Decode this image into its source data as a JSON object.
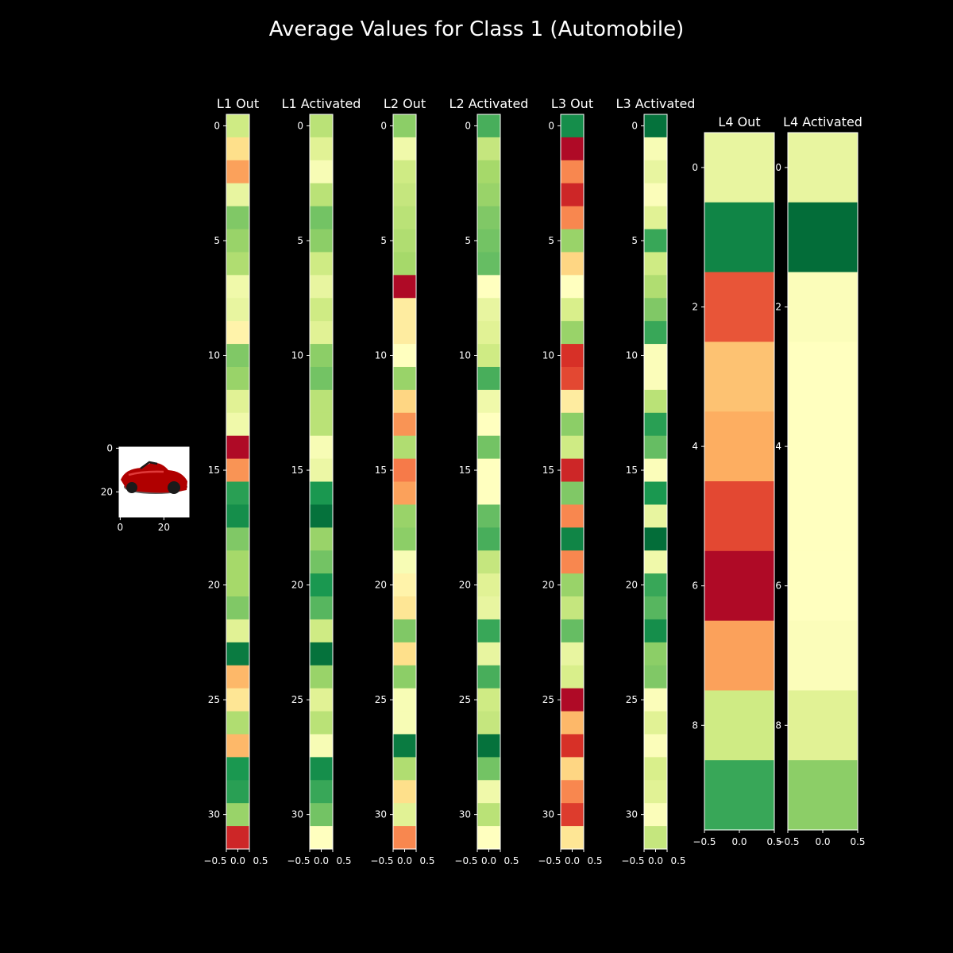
{
  "figure": {
    "title": "Average Values for Class 1 (Automobile)",
    "background": "#000000",
    "foreground": "#ffffff",
    "colormap": "RdYlGn"
  },
  "chart_data": [
    {
      "type": "image",
      "title": "",
      "content": "red car thumbnail",
      "colors": {
        "background": "#ffffff",
        "body": "#b00000",
        "shadow": "#2a2a2a"
      },
      "xticks": [
        "0",
        "20"
      ],
      "yticks": [
        "0",
        "20"
      ],
      "xlim": [
        0,
        32
      ],
      "ylim": [
        0,
        32
      ]
    },
    {
      "type": "heatmap",
      "title": "L1 Out",
      "yticks": [
        "0",
        "5",
        "10",
        "15",
        "20",
        "25",
        "30"
      ],
      "xticks": [
        "−0.5",
        "0.0",
        "0.5"
      ],
      "xlim": [
        -0.5,
        0.5
      ],
      "ylim": [
        -0.5,
        31.5
      ],
      "values": [
        0.62,
        0.4,
        0.28,
        0.56,
        0.76,
        0.72,
        0.68,
        0.54,
        0.56,
        0.46,
        0.76,
        0.72,
        0.58,
        0.54,
        0.02,
        0.26,
        0.88,
        0.92,
        0.76,
        0.7,
        0.7,
        0.76,
        0.58,
        0.96,
        0.32,
        0.42,
        0.68,
        0.32,
        0.9,
        0.88,
        0.72,
        0.08
      ]
    },
    {
      "type": "heatmap",
      "title": "L1 Activated",
      "yticks": [
        "0",
        "5",
        "10",
        "15",
        "20",
        "25",
        "30"
      ],
      "xticks": [
        "−0.5",
        "0.0",
        "0.5"
      ],
      "xlim": [
        -0.5,
        0.5
      ],
      "ylim": [
        -0.5,
        31.5
      ],
      "values": [
        0.66,
        0.58,
        0.52,
        0.66,
        0.78,
        0.74,
        0.62,
        0.56,
        0.62,
        0.58,
        0.74,
        0.78,
        0.66,
        0.66,
        0.52,
        0.55,
        0.9,
        0.98,
        0.72,
        0.78,
        0.9,
        0.82,
        0.62,
        0.98,
        0.72,
        0.58,
        0.66,
        0.52,
        0.92,
        0.86,
        0.78,
        0.5
      ]
    },
    {
      "type": "heatmap",
      "title": "L2 Out",
      "yticks": [
        "0",
        "5",
        "10",
        "15",
        "20",
        "25",
        "30"
      ],
      "xticks": [
        "−0.5",
        "0.0",
        "0.5"
      ],
      "xlim": [
        -0.5,
        0.5
      ],
      "ylim": [
        -0.5,
        31.5
      ],
      "values": [
        0.74,
        0.54,
        0.62,
        0.64,
        0.66,
        0.68,
        0.7,
        0.02,
        0.44,
        0.44,
        0.5,
        0.72,
        0.38,
        0.26,
        0.68,
        0.22,
        0.28,
        0.72,
        0.74,
        0.52,
        0.46,
        0.42,
        0.76,
        0.4,
        0.74,
        0.52,
        0.52,
        0.96,
        0.68,
        0.4,
        0.58,
        0.24
      ]
    },
    {
      "type": "heatmap",
      "title": "L2 Activated",
      "yticks": [
        "0",
        "5",
        "10",
        "15",
        "20",
        "25",
        "30"
      ],
      "xticks": [
        "−0.5",
        "0.0",
        "0.5"
      ],
      "xlim": [
        -0.5,
        0.5
      ],
      "ylim": [
        -0.5,
        31.5
      ],
      "values": [
        0.84,
        0.64,
        0.7,
        0.72,
        0.76,
        0.78,
        0.8,
        0.5,
        0.56,
        0.58,
        0.62,
        0.84,
        0.54,
        0.5,
        0.78,
        0.5,
        0.5,
        0.8,
        0.84,
        0.64,
        0.58,
        0.56,
        0.86,
        0.56,
        0.84,
        0.62,
        0.64,
        0.98,
        0.78,
        0.54,
        0.66,
        0.5
      ]
    },
    {
      "type": "heatmap",
      "title": "L3 Out",
      "yticks": [
        "0",
        "5",
        "10",
        "15",
        "20",
        "25",
        "30"
      ],
      "xticks": [
        "−0.5",
        "0.0",
        "0.5"
      ],
      "xlim": [
        -0.5,
        0.5
      ],
      "ylim": [
        -0.5,
        31.5
      ],
      "values": [
        0.92,
        0.02,
        0.24,
        0.08,
        0.24,
        0.72,
        0.38,
        0.5,
        0.6,
        0.72,
        0.1,
        0.14,
        0.44,
        0.74,
        0.62,
        0.08,
        0.76,
        0.24,
        0.94,
        0.24,
        0.72,
        0.64,
        0.8,
        0.56,
        0.6,
        0.02,
        0.32,
        0.1,
        0.38,
        0.24,
        0.12,
        0.42
      ]
    },
    {
      "type": "heatmap",
      "title": "L3 Activated",
      "yticks": [
        "0",
        "5",
        "10",
        "15",
        "20",
        "25",
        "30"
      ],
      "xticks": [
        "−0.5",
        "0.0",
        "0.5"
      ],
      "xlim": [
        -0.5,
        0.5
      ],
      "ylim": [
        -0.5,
        31.5
      ],
      "values": [
        0.98,
        0.52,
        0.56,
        0.51,
        0.58,
        0.86,
        0.62,
        0.68,
        0.76,
        0.86,
        0.51,
        0.51,
        0.66,
        0.88,
        0.8,
        0.51,
        0.9,
        0.56,
        0.99,
        0.54,
        0.86,
        0.82,
        0.92,
        0.74,
        0.76,
        0.51,
        0.58,
        0.51,
        0.6,
        0.58,
        0.51,
        0.64
      ]
    },
    {
      "type": "heatmap",
      "title": "L4 Out",
      "yticks": [
        "0",
        "2",
        "4",
        "6",
        "8"
      ],
      "xticks": [
        "−0.5",
        "0.0",
        "0.5"
      ],
      "xlim": [
        -0.5,
        0.5
      ],
      "ylim": [
        -0.5,
        9.5
      ],
      "values": [
        0.56,
        0.94,
        0.16,
        0.34,
        0.3,
        0.14,
        0.02,
        0.28,
        0.62,
        0.86
      ]
    },
    {
      "type": "heatmap",
      "title": "L4 Activated",
      "yticks": [
        "0",
        "2",
        "4",
        "6",
        "8"
      ],
      "xticks": [
        "−0.5",
        "0.0",
        "0.5"
      ],
      "xlim": [
        -0.5,
        0.5
      ],
      "ylim": [
        -0.5,
        9.5
      ],
      "values": [
        0.56,
        0.99,
        0.51,
        0.5,
        0.5,
        0.5,
        0.5,
        0.51,
        0.58,
        0.74
      ]
    }
  ]
}
